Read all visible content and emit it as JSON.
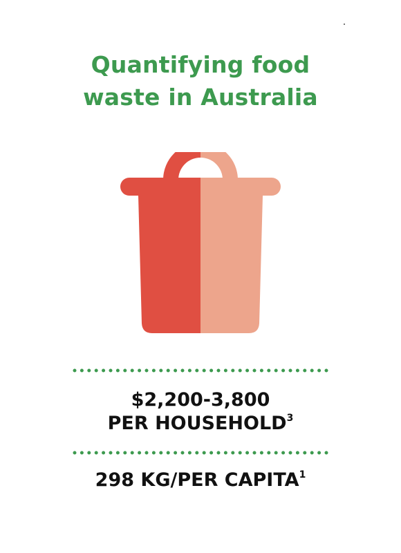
{
  "title": {
    "line1": "Quantifying food",
    "line2": "waste in Australia"
  },
  "icon": "trash-bin-icon",
  "colors": {
    "title": "#3d9a4f",
    "dots": "#3d9a4f",
    "bin_dark": "#e04f42",
    "bin_light": "#eda58c",
    "stat_text": "#111111"
  },
  "stats": {
    "household_amount": "$2,200-3,800",
    "household_label": "PER HOUSEHOLD",
    "household_ref": "3",
    "capita_label": "298 KG/PER CAPITA",
    "capita_ref": "1"
  }
}
